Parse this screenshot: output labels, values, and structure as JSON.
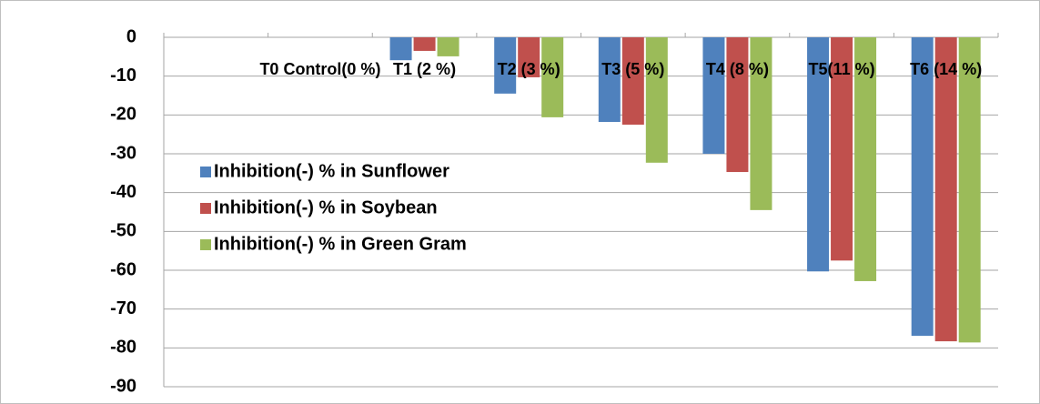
{
  "chart_data": {
    "type": "bar",
    "categories": [
      null,
      "T0 Control(0 %)",
      "T1 (2 %)",
      "T2 (3 %)",
      "T3 (5 %)",
      "T4 (8 %)",
      "T5(11 %)",
      "T6 (14 %)"
    ],
    "series": [
      {
        "name": "Inhibition(-) % in Sunflower",
        "color": "#4f81bd",
        "values": [
          null,
          0,
          -5.9,
          -14.5,
          -21.8,
          -30.0,
          -60.3,
          -76.9
        ]
      },
      {
        "name": "Inhibition(-) % in Soybean",
        "color": "#c0504d",
        "values": [
          null,
          0,
          -3.5,
          -10.3,
          -22.5,
          -34.7,
          -57.5,
          -78.3
        ]
      },
      {
        "name": "Inhibition(-) % in Green Gram",
        "color": "#9bbb59",
        "values": [
          null,
          0,
          -4.9,
          -20.6,
          -32.3,
          -44.5,
          -62.8,
          -78.6
        ]
      }
    ],
    "ylim": [
      -90,
      0
    ],
    "yticks": [
      0,
      -10,
      -20,
      -30,
      -40,
      -50,
      -60,
      -70,
      -80,
      -90
    ],
    "grid": true,
    "legend": "left"
  }
}
